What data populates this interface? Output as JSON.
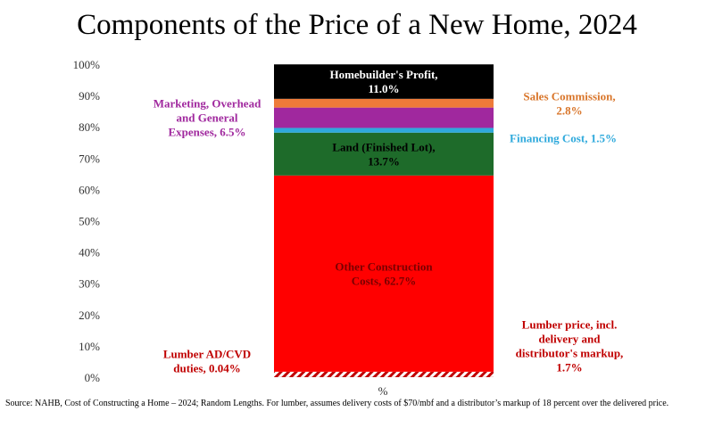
{
  "title": "Components of the Price of a New Home, 2024",
  "source_note": "Source: NAHB, Cost of Constructing a Home – 2024; Random Lengths.  For lumber, assumes delivery costs of $70/mbf and a distributor’s markup of 18 percent over the delivered price.",
  "chart_data": {
    "type": "bar",
    "stacked": true,
    "categories": [
      "%"
    ],
    "xlabel": "%",
    "ylim": [
      0,
      100
    ],
    "yticks": [
      "0%",
      "10%",
      "20%",
      "30%",
      "40%",
      "50%",
      "60%",
      "70%",
      "80%",
      "90%",
      "100%"
    ],
    "grid": false,
    "series": [
      {
        "name": "Lumber AD/CVD duties",
        "value": 0.04,
        "color": "#c00000",
        "label_lines": [
          "Lumber AD/CVD",
          "duties, 0.04%"
        ],
        "label_color": "#c00000",
        "label_side": "left"
      },
      {
        "name": "Lumber price, incl. delivery and distributor's markup",
        "value": 1.7,
        "color": "#c00000",
        "pattern": "hatch",
        "label_lines": [
          "Lumber price, incl.",
          "delivery and",
          "distributor's markup,",
          "1.7%"
        ],
        "label_color": "#c00000",
        "label_side": "right"
      },
      {
        "name": "Other Construction Costs",
        "value": 62.7,
        "color": "#ff0000",
        "label_lines": [
          "Other Construction",
          "Costs, 62.7%"
        ],
        "label_color": "#7a0000",
        "label_side": "inside"
      },
      {
        "name": "Land (Finished Lot)",
        "value": 13.7,
        "color": "#1e6b2a",
        "label_lines": [
          "Land (Finished Lot),",
          "13.7%"
        ],
        "label_color": "#000000",
        "label_side": "inside"
      },
      {
        "name": "Financing Cost",
        "value": 1.5,
        "color": "#2ea9dc",
        "label_lines": [
          "Financing Cost, 1.5%"
        ],
        "label_color": "#2ea9dc",
        "label_side": "right"
      },
      {
        "name": "Marketing, Overhead and General Expenses",
        "value": 6.5,
        "color": "#a0289e",
        "label_lines": [
          "Marketing, Overhead",
          "and General",
          "Expenses, 6.5%"
        ],
        "label_color": "#a0289e",
        "label_side": "left"
      },
      {
        "name": "Sales Commission",
        "value": 2.8,
        "color": "#ee7b3a",
        "label_lines": [
          "Sales Commission,",
          "2.8%"
        ],
        "label_color": "#d9762b",
        "label_side": "right"
      },
      {
        "name": "Homebuilder's Profit",
        "value": 11.0,
        "color": "#000000",
        "label_lines": [
          "Homebuilder's Profit,",
          "11.0%"
        ],
        "label_color": "#ffffff",
        "label_side": "inside"
      }
    ]
  }
}
